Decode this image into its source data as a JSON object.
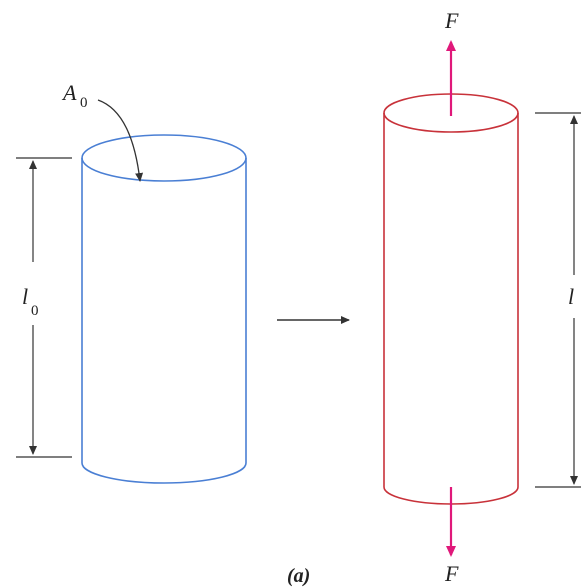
{
  "diagram": {
    "labels": {
      "area_main": "A",
      "area_sub": "0",
      "length_orig_main": "l",
      "length_orig_sub": "0",
      "length_new": "l",
      "force_top": "F",
      "force_bottom": "F",
      "caption": "(a)"
    },
    "colors": {
      "original_cylinder": "#4a7fd4",
      "stretched_cylinder": "#c8323a",
      "force_arrow": "#e0187a",
      "dimension": "#333333"
    }
  }
}
